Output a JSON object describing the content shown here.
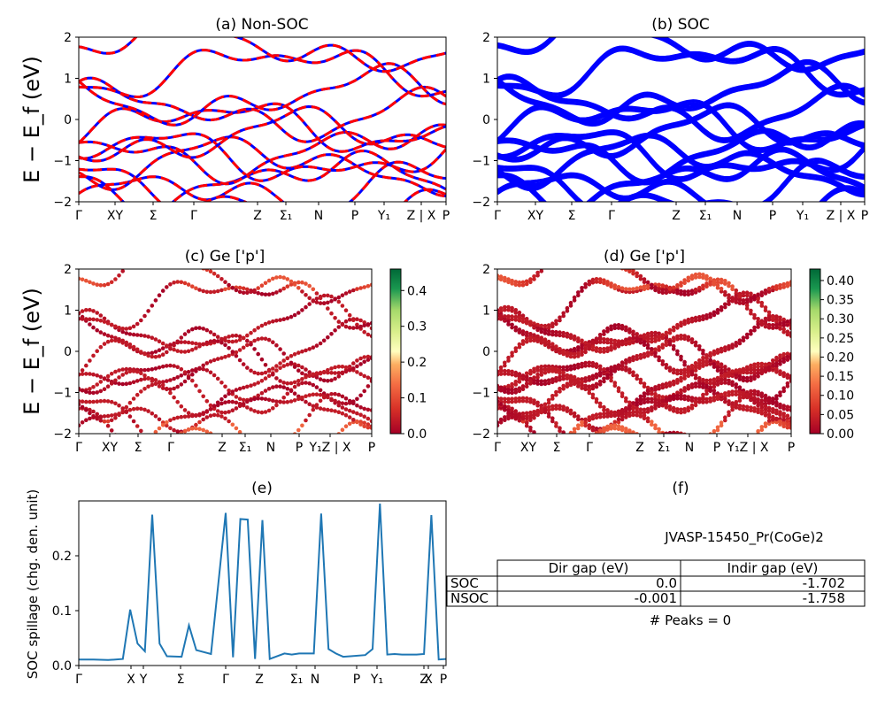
{
  "chart_data": [
    {
      "panel": "a",
      "type": "line",
      "title": "(a) Non-SOC",
      "ylabel": "E − E_f (eV)",
      "ylim": [
        -2,
        2
      ],
      "yticks": [
        "2",
        "1",
        "0",
        "−1",
        "−2"
      ],
      "xticks": [
        "Γ",
        "XY",
        "Σ",
        "Γ",
        "Z",
        "Σ₁",
        "N",
        "P",
        "Y₁",
        "Z | X",
        "P"
      ],
      "series": [
        {
          "style": "solid",
          "color": "#0000ff"
        },
        {
          "style": "dashed",
          "color": "#ff0000"
        }
      ]
    },
    {
      "panel": "b",
      "type": "line",
      "title": "(b) SOC",
      "ylim": [
        -2,
        2
      ],
      "yticks": [
        "2",
        "1",
        "0",
        "−1",
        "−2"
      ],
      "xticks": [
        "Γ",
        "XY",
        "Σ",
        "Γ",
        "Z",
        "Σ₁",
        "N",
        "P",
        "Y₁",
        "Z | X",
        "P"
      ],
      "series": [
        {
          "style": "solid",
          "color": "#0000ff"
        }
      ]
    },
    {
      "panel": "c",
      "type": "scatter",
      "title": "(c)  Ge ['p']",
      "ylabel": "E − E_f (eV)",
      "ylim": [
        -2,
        2
      ],
      "yticks": [
        "2",
        "1",
        "0",
        "−1",
        "−2"
      ],
      "xticks": [
        "Γ",
        "XY",
        "Σ",
        "Γ",
        "Z",
        "Σ₁",
        "N",
        "P",
        "Y₁Z | X",
        "P"
      ],
      "colorbar": {
        "min": 0.0,
        "max": 0.46,
        "ticks": [
          "0.0",
          "0.1",
          "0.2",
          "0.3",
          "0.4"
        ],
        "colormap": "RdYlGn"
      }
    },
    {
      "panel": "d",
      "type": "scatter",
      "title": "(d) Ge ['p']",
      "ylim": [
        -2,
        2
      ],
      "yticks": [
        "2",
        "1",
        "0",
        "−1",
        "−2"
      ],
      "xticks": [
        "Γ",
        "XY",
        "Σ",
        "Γ",
        "Z",
        "Σ₁",
        "N",
        "P",
        "Y₁Z | X",
        "P"
      ],
      "colorbar": {
        "min": 0.0,
        "max": 0.43,
        "ticks": [
          "0.00",
          "0.05",
          "0.10",
          "0.15",
          "0.20",
          "0.25",
          "0.30",
          "0.35",
          "0.40"
        ],
        "colormap": "RdYlGn"
      }
    },
    {
      "panel": "e",
      "type": "line",
      "title": "(e)",
      "ylabel": "SOC spillage (chg. den. unit)",
      "ylim": [
        0,
        0.3
      ],
      "yticks": [
        "0.2",
        "0.1",
        "0.0"
      ],
      "xticks": [
        "Γ",
        "X",
        "Y",
        "Σ",
        "Γ",
        "Z",
        "Σ₁",
        "N",
        "P",
        "Y₁",
        "Z",
        "X",
        "P"
      ],
      "color": "#1f77b4",
      "x": [
        0,
        0.04,
        0.08,
        0.12,
        0.14,
        0.16,
        0.18,
        0.2,
        0.22,
        0.24,
        0.28,
        0.3,
        0.32,
        0.36,
        0.4,
        0.42,
        0.44,
        0.46,
        0.48,
        0.5,
        0.52,
        0.56,
        0.58,
        0.6,
        0.64,
        0.66,
        0.68,
        0.7,
        0.72,
        0.74,
        0.78,
        0.8,
        0.82,
        0.84,
        0.86,
        0.88,
        0.9,
        0.92,
        0.94,
        0.96,
        0.98,
        1.0
      ],
      "y": [
        0.011,
        0.011,
        0.01,
        0.012,
        0.102,
        0.04,
        0.026,
        0.275,
        0.04,
        0.017,
        0.016,
        0.073,
        0.028,
        0.021,
        0.278,
        0.015,
        0.267,
        0.266,
        0.012,
        0.265,
        0.012,
        0.022,
        0.02,
        0.022,
        0.022,
        0.277,
        0.03,
        0.022,
        0.016,
        0.017,
        0.019,
        0.03,
        0.295,
        0.02,
        0.021,
        0.02,
        0.02,
        0.02,
        0.021,
        0.274,
        0.011,
        0.012
      ]
    }
  ],
  "panel_f": {
    "title": "(f)",
    "material": "JVASP-15450_Pr(CoGe)2",
    "table": {
      "headers": [
        "",
        "Dir gap (eV)",
        "Indir gap (eV)"
      ],
      "rows": [
        [
          "SOC",
          "0.0",
          "-1.702"
        ],
        [
          "NSOC",
          "-0.001",
          "-1.758"
        ]
      ]
    },
    "peaks_text": "# Peaks = 0"
  }
}
